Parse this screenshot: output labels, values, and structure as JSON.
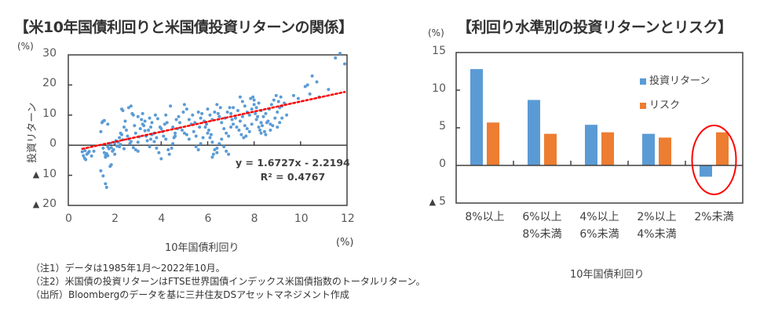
{
  "left_title": "【米10年国債利回りと米国債投資リターンの関係】",
  "right_title": "【利回り水準別の投資リターンとリスク】",
  "notes": [
    "（注1）データは1985年1月～2022年10月。",
    "（注2）米国債の投資リターンはFTSE世界国債インデックス米国債指数のトータルリターン。",
    "（出所）Bloombergのデータを基に三井住友DSアセットマネジメント作成"
  ],
  "neg_symbol": "▲",
  "chart_data": [
    {
      "type": "scatter",
      "title": "米10年国債利回りと米国債投資リターンの関係",
      "xlabel": "10年国債利回り",
      "x_unit": "(%)",
      "ylabel": "投資リターン",
      "y_unit": "(%)",
      "xlim": [
        0,
        12
      ],
      "ylim": [
        -20,
        30
      ],
      "x_ticks": [
        "0",
        "2",
        "4",
        "6",
        "8",
        "10",
        "12"
      ],
      "y_ticks": [
        {
          "value": 30,
          "label": "30"
        },
        {
          "value": 20,
          "label": "20"
        },
        {
          "value": 10,
          "label": "10"
        },
        {
          "value": 0,
          "label": "0"
        },
        {
          "value": -10,
          "label": "10",
          "negative": true
        },
        {
          "value": -20,
          "label": "20",
          "negative": true
        }
      ],
      "grid": false,
      "point_color": "#5B9BD5",
      "trendline": {
        "slope": 1.6727,
        "intercept": -2.2194,
        "color": "#FF0000",
        "style": "dotted",
        "x_range": [
          0.6,
          11.9
        ]
      },
      "equation": "y = 1.6727x - 2.2194",
      "r_squared": "R² = 0.4767",
      "series": [
        {
          "name": "投資リターン",
          "points": [
            [
              0.6,
              -2.2
            ],
            [
              0.65,
              -3.5
            ],
            [
              0.7,
              -4.3
            ],
            [
              0.72,
              -1.8
            ],
            [
              0.8,
              -3.0
            ],
            [
              0.9,
              -2.1
            ],
            [
              1.0,
              -3.6
            ],
            [
              1.1,
              -2.0
            ],
            [
              0.75,
              -4.8
            ],
            [
              0.85,
              -2.6
            ],
            [
              1.4,
              -8.5
            ],
            [
              1.5,
              -10.2
            ],
            [
              1.6,
              -12.8
            ],
            [
              1.65,
              -14.0
            ],
            [
              1.8,
              -7.0
            ],
            [
              1.85,
              -6.5
            ],
            [
              1.5,
              -1.0
            ],
            [
              1.55,
              -2.5
            ],
            [
              1.6,
              -3.5
            ],
            [
              1.65,
              -2.8
            ],
            [
              1.7,
              -0.5
            ],
            [
              1.75,
              -1.2
            ],
            [
              1.8,
              0.5
            ],
            [
              1.85,
              -0.8
            ],
            [
              1.9,
              -2.0
            ],
            [
              1.95,
              -1.5
            ],
            [
              2.0,
              -3.0
            ],
            [
              2.0,
              0.8
            ],
            [
              2.05,
              1.5
            ],
            [
              2.1,
              -0.3
            ],
            [
              1.4,
              4.5
            ],
            [
              1.45,
              7.5
            ],
            [
              1.5,
              8.0
            ],
            [
              1.55,
              8.2
            ],
            [
              1.7,
              7.0
            ],
            [
              1.6,
              -4.0
            ],
            [
              1.7,
              -3.5
            ],
            [
              2.2,
              2.5
            ],
            [
              2.25,
              4.0
            ],
            [
              2.3,
              3.5
            ],
            [
              2.3,
              12.0
            ],
            [
              2.35,
              11.5
            ],
            [
              2.4,
              6.0
            ],
            [
              2.5,
              5.0
            ],
            [
              2.55,
              3.0
            ],
            [
              2.6,
              2.0
            ],
            [
              2.7,
              13.0
            ],
            [
              2.8,
              10.0
            ],
            [
              2.85,
              6.5
            ],
            [
              2.9,
              4.0
            ],
            [
              2.9,
              -1.5
            ],
            [
              3.0,
              -2.0
            ],
            [
              3.0,
              1.0
            ],
            [
              3.1,
              5.5
            ],
            [
              3.2,
              7.0
            ],
            [
              3.2,
              10.5
            ],
            [
              3.3,
              8.0
            ],
            [
              3.35,
              3.0
            ],
            [
              3.4,
              1.5
            ],
            [
              3.5,
              -0.5
            ],
            [
              3.5,
              9.0
            ],
            [
              3.55,
              6.0
            ],
            [
              3.6,
              7.5
            ],
            [
              3.7,
              4.0
            ],
            [
              3.8,
              2.5
            ],
            [
              3.8,
              -1.0
            ],
            [
              3.9,
              -2.5
            ],
            [
              2.6,
              12.5
            ],
            [
              2.75,
              10.5
            ],
            [
              2.45,
              8.0
            ],
            [
              3.0,
              9.5
            ],
            [
              3.15,
              8.5
            ],
            [
              3.25,
              6.5
            ],
            [
              3.45,
              5.0
            ],
            [
              3.6,
              3.5
            ],
            [
              3.75,
              10.0
            ],
            [
              3.85,
              8.8
            ],
            [
              3.95,
              6.0
            ],
            [
              4.0,
              5.5
            ],
            [
              4.05,
              4.5
            ],
            [
              4.1,
              3.0
            ],
            [
              4.2,
              2.0
            ],
            [
              4.3,
              -1.5
            ],
            [
              4.0,
              -4.5
            ],
            [
              4.35,
              -3.0
            ],
            [
              4.45,
              -1.0
            ],
            [
              4.5,
              0.5
            ],
            [
              4.55,
              2.5
            ],
            [
              4.6,
              4.0
            ],
            [
              4.7,
              5.5
            ],
            [
              4.2,
              10.0
            ],
            [
              4.25,
              7.5
            ],
            [
              4.4,
              13.0
            ],
            [
              4.5,
              6.0
            ],
            [
              4.6,
              3.0
            ],
            [
              4.8,
              7.5
            ],
            [
              4.9,
              5.0
            ],
            [
              5.0,
              4.0
            ],
            [
              5.1,
              3.5
            ],
            [
              5.2,
              2.0
            ],
            [
              5.0,
              13.5
            ],
            [
              5.1,
              12.0
            ],
            [
              5.2,
              8.5
            ],
            [
              5.3,
              7.0
            ],
            [
              5.4,
              4.5
            ],
            [
              5.5,
              3.0
            ],
            [
              5.5,
              -0.5
            ],
            [
              5.6,
              -1.5
            ],
            [
              5.7,
              0.5
            ],
            [
              5.8,
              2.5
            ],
            [
              5.6,
              11.0
            ],
            [
              5.7,
              9.0
            ],
            [
              5.75,
              10.5
            ],
            [
              5.85,
              8.0
            ],
            [
              5.9,
              6.0
            ],
            [
              6.0,
              4.0
            ],
            [
              6.1,
              2.5
            ],
            [
              6.2,
              1.0
            ],
            [
              6.3,
              -1.5
            ],
            [
              6.4,
              -2.5
            ],
            [
              6.0,
              12.0
            ],
            [
              6.1,
              10.0
            ],
            [
              6.2,
              8.5
            ],
            [
              6.3,
              11.0
            ],
            [
              6.4,
              13.5
            ],
            [
              6.5,
              9.5
            ],
            [
              6.6,
              7.5
            ],
            [
              6.7,
              5.5
            ],
            [
              6.8,
              4.0
            ],
            [
              6.9,
              3.0
            ],
            [
              6.2,
              -4.0
            ],
            [
              6.25,
              -3.0
            ],
            [
              6.4,
              -1.0
            ],
            [
              6.5,
              0.5
            ],
            [
              6.6,
              2.0
            ],
            [
              6.7,
              -0.5
            ],
            [
              6.8,
              -2.0
            ],
            [
              6.9,
              -3.0
            ],
            [
              7.0,
              6.0
            ],
            [
              7.1,
              7.0
            ],
            [
              7.0,
              10.5
            ],
            [
              7.1,
              12.5
            ],
            [
              7.2,
              9.0
            ],
            [
              7.3,
              11.5
            ],
            [
              7.4,
              8.0
            ],
            [
              7.5,
              9.5
            ],
            [
              7.6,
              6.5
            ],
            [
              7.7,
              5.5
            ],
            [
              7.8,
              4.5
            ],
            [
              7.9,
              7.0
            ],
            [
              7.4,
              16.0
            ],
            [
              7.5,
              14.5
            ],
            [
              7.6,
              13.0
            ],
            [
              7.7,
              11.0
            ],
            [
              7.8,
              10.0
            ],
            [
              7.9,
              12.0
            ],
            [
              8.0,
              13.5
            ],
            [
              8.1,
              8.5
            ],
            [
              8.2,
              6.0
            ],
            [
              8.3,
              7.5
            ],
            [
              8.0,
              15.0
            ],
            [
              8.1,
              12.5
            ],
            [
              8.2,
              14.0
            ],
            [
              8.3,
              11.5
            ],
            [
              8.4,
              9.5
            ],
            [
              8.5,
              10.5
            ],
            [
              8.6,
              8.0
            ],
            [
              8.7,
              7.0
            ],
            [
              8.8,
              6.5
            ],
            [
              8.9,
              9.0
            ],
            [
              8.3,
              4.0
            ],
            [
              8.5,
              3.5
            ],
            [
              8.7,
              5.0
            ],
            [
              9.0,
              11.0
            ],
            [
              9.1,
              12.5
            ],
            [
              9.2,
              13.0
            ],
            [
              9.3,
              14.0
            ],
            [
              9.4,
              10.0
            ],
            [
              9.0,
              6.0
            ],
            [
              9.1,
              7.5
            ],
            [
              9.7,
              16.5
            ],
            [
              9.9,
              15.5
            ],
            [
              10.2,
              19.5
            ],
            [
              10.3,
              20.0
            ],
            [
              10.4,
              17.0
            ],
            [
              10.5,
              23.0
            ],
            [
              10.7,
              21.0
            ],
            [
              11.2,
              18.5
            ],
            [
              11.7,
              30.5
            ],
            [
              11.9,
              27.0
            ],
            [
              10.8,
              16.0
            ],
            [
              11.5,
              29.0
            ],
            [
              2.15,
              1.0
            ],
            [
              2.2,
              -0.5
            ],
            [
              2.25,
              0.2
            ],
            [
              2.35,
              1.8
            ],
            [
              2.4,
              -1.2
            ],
            [
              2.65,
              0.5
            ],
            [
              2.7,
              1.2
            ],
            [
              2.8,
              -0.8
            ],
            [
              3.05,
              2.8
            ],
            [
              3.3,
              4.8
            ],
            [
              3.55,
              2.0
            ],
            [
              3.7,
              1.2
            ],
            [
              4.15,
              7.0
            ],
            [
              4.65,
              8.5
            ],
            [
              4.75,
              9.5
            ],
            [
              4.95,
              11.0
            ],
            [
              5.35,
              10.0
            ],
            [
              5.45,
              7.5
            ],
            [
              5.65,
              6.0
            ],
            [
              5.95,
              7.0
            ],
            [
              6.05,
              5.0
            ],
            [
              6.15,
              3.5
            ],
            [
              6.45,
              10.5
            ],
            [
              6.55,
              12.5
            ],
            [
              6.75,
              9.0
            ],
            [
              6.85,
              11.0
            ],
            [
              6.95,
              12.5
            ],
            [
              7.05,
              8.5
            ],
            [
              7.25,
              6.0
            ],
            [
              7.35,
              5.0
            ],
            [
              7.45,
              3.5
            ],
            [
              7.55,
              2.5
            ],
            [
              7.65,
              3.0
            ],
            [
              7.85,
              15.5
            ],
            [
              7.95,
              16.0
            ],
            [
              8.05,
              10.5
            ],
            [
              8.15,
              9.5
            ],
            [
              8.25,
              5.0
            ],
            [
              8.35,
              6.5
            ],
            [
              8.45,
              4.5
            ],
            [
              8.55,
              7.5
            ],
            [
              8.65,
              12.0
            ],
            [
              8.75,
              13.5
            ],
            [
              8.85,
              15.0
            ],
            [
              8.95,
              16.5
            ],
            [
              9.05,
              14.5
            ],
            [
              9.15,
              16.0
            ],
            [
              9.2,
              9.0
            ]
          ]
        }
      ]
    },
    {
      "type": "bar",
      "title": "利回り水準別の投資リターンとリスク",
      "xlabel": "10年国債利回り",
      "y_unit": "(%)",
      "ylim": [
        -5,
        15
      ],
      "y_ticks": [
        {
          "value": 15,
          "label": "15"
        },
        {
          "value": 10,
          "label": "10"
        },
        {
          "value": 5,
          "label": "5"
        },
        {
          "value": 0,
          "label": "0"
        },
        {
          "value": -5,
          "label": "5",
          "negative": true
        }
      ],
      "grid": false,
      "legend_position": "top-right",
      "categories": [
        [
          "8%以上",
          ""
        ],
        [
          "6%以上",
          "8%未満"
        ],
        [
          "4%以上",
          "6%未満"
        ],
        [
          "2%以上",
          "4%未満"
        ],
        [
          "2%未満",
          ""
        ]
      ],
      "series": [
        {
          "name": "投資リターン",
          "color": "#5B9BD5",
          "values": [
            12.8,
            8.7,
            5.4,
            4.2,
            -1.5
          ]
        },
        {
          "name": "リスク",
          "color": "#ED7D31",
          "values": [
            5.7,
            4.2,
            4.4,
            3.7,
            4.4
          ]
        }
      ],
      "annotation": {
        "type": "ellipse",
        "color": "#FF0000",
        "category_index": 4
      }
    }
  ]
}
